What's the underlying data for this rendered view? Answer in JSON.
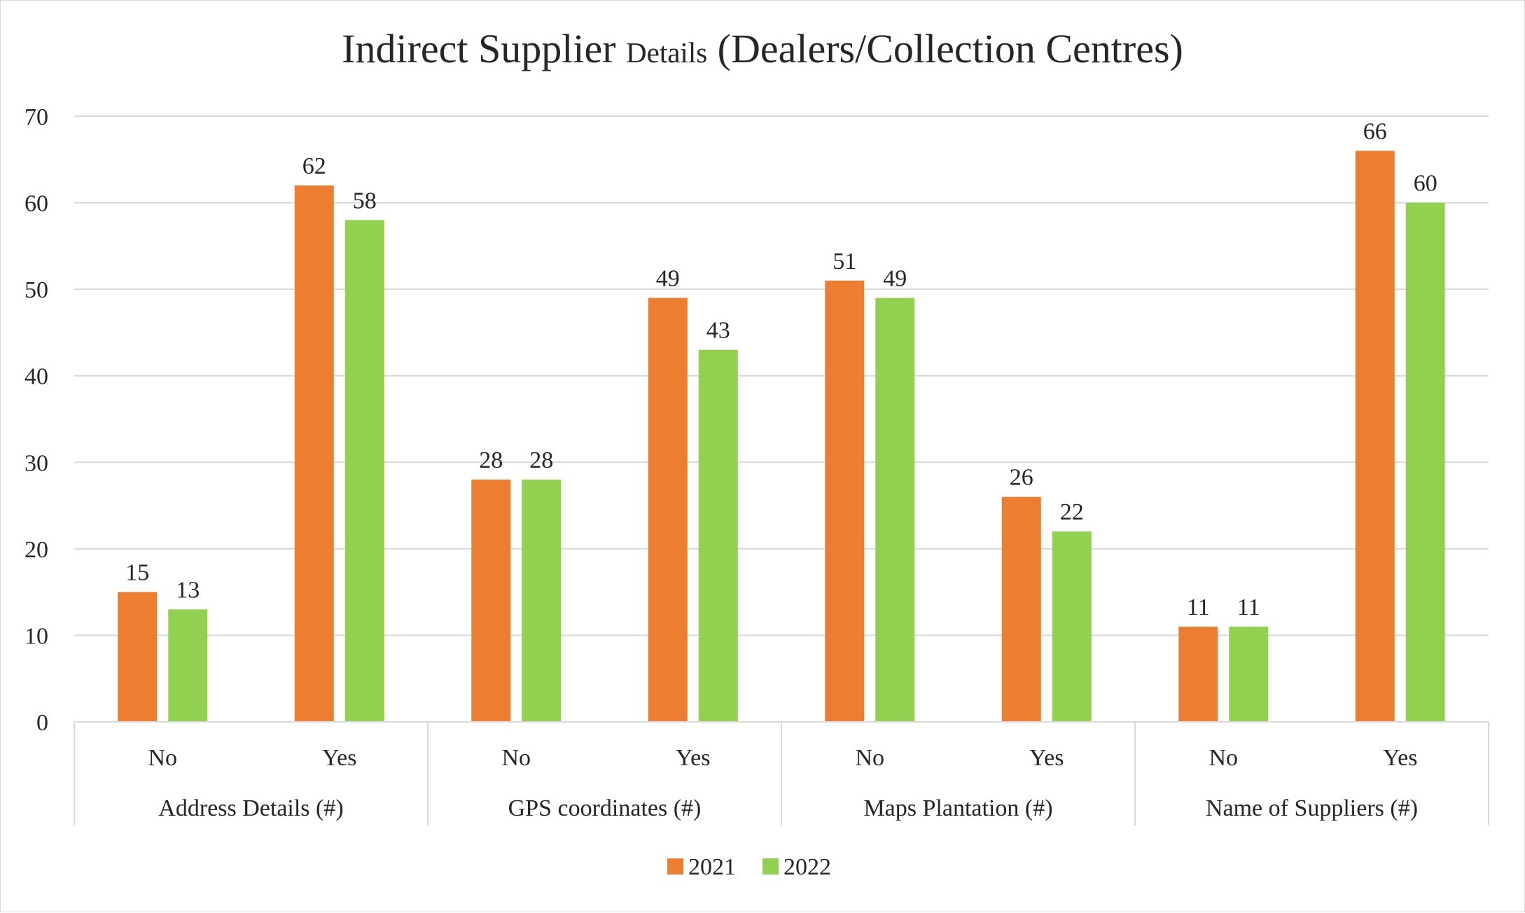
{
  "chart_data": {
    "type": "bar",
    "title_main": "Indirect Supplier",
    "title_small": "Details",
    "title_tail": "(Dealers/Collection Centres)",
    "groups": [
      {
        "label": "Address Details (#)",
        "categories": [
          "No",
          "Yes"
        ]
      },
      {
        "label": "GPS coordinates (#)",
        "categories": [
          "No",
          "Yes"
        ]
      },
      {
        "label": "Maps Plantation (#)",
        "categories": [
          "No",
          "Yes"
        ]
      },
      {
        "label": "Name of Suppliers (#)",
        "categories": [
          "No",
          "Yes"
        ]
      }
    ],
    "series": [
      {
        "name": "2021",
        "color": "#ED7D31",
        "values": [
          15,
          62,
          28,
          49,
          51,
          26,
          11,
          66
        ]
      },
      {
        "name": "2022",
        "color": "#92D050",
        "values": [
          13,
          58,
          28,
          43,
          49,
          22,
          11,
          60
        ]
      }
    ],
    "ylim": [
      0,
      70
    ],
    "yticks": [
      0,
      10,
      20,
      30,
      40,
      50,
      60,
      70
    ],
    "grid": true,
    "legend": "bottom",
    "data_labels": true
  }
}
